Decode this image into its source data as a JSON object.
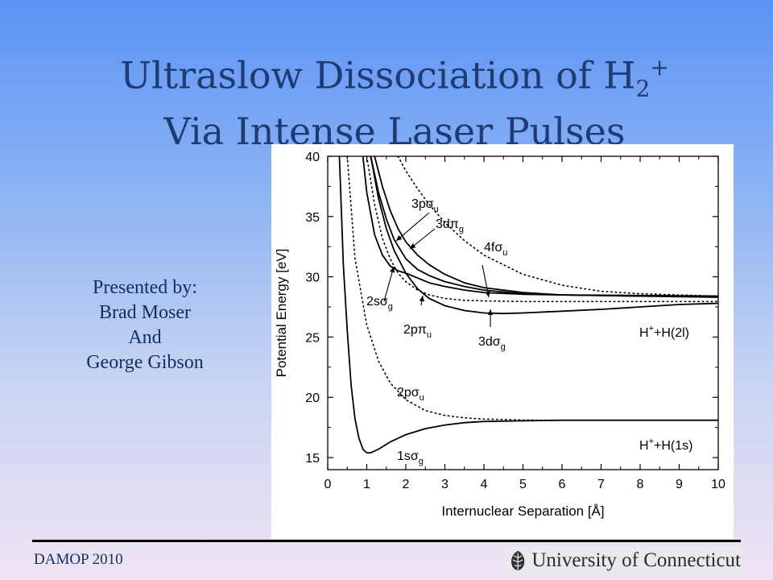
{
  "slide": {
    "title_line1_main": "Ultraslow Dissociation of H",
    "title_subscript": "2",
    "title_superscript": "+",
    "title_line2": "Via Intense Laser Pulses",
    "presenter_lines": [
      "Presented by:",
      "Brad Moser",
      "And",
      "George Gibson"
    ],
    "footer_left": "DAMOP 2010",
    "footer_logo_text": "University of Connecticut",
    "colors": {
      "title": "#1f3b73",
      "text": "#0f2f5f",
      "background_top": "#5b93f5",
      "background_bottom": "#f0e3f3"
    }
  },
  "chart_data": {
    "type": "line",
    "xlabel": "Internuclear Separation [Å]",
    "ylabel": "Potential Energy [eV]",
    "xlim": [
      0,
      10
    ],
    "ylim": [
      14,
      40
    ],
    "xticks": [
      0,
      1,
      2,
      3,
      4,
      5,
      6,
      7,
      8,
      9,
      10
    ],
    "yticks": [
      15,
      20,
      25,
      30,
      35,
      40
    ],
    "grid": false,
    "series": [
      {
        "name": "1sσg",
        "style": "solid",
        "x": [
          0.3,
          0.4,
          0.5,
          0.6,
          0.7,
          0.8,
          0.9,
          1.0,
          1.1,
          1.3,
          1.6,
          2.0,
          2.5,
          3.0,
          3.5,
          4.0,
          5.0,
          6.0,
          8.0,
          10.0
        ],
        "y": [
          40,
          31,
          25.5,
          21,
          18.2,
          16.6,
          15.7,
          15.4,
          15.4,
          15.7,
          16.3,
          16.9,
          17.4,
          17.7,
          17.9,
          18.0,
          18.05,
          18.1,
          18.1,
          18.1
        ]
      },
      {
        "name": "2pσu",
        "style": "dotted",
        "x": [
          0.5,
          0.7,
          1.0,
          1.3,
          1.6,
          2.0,
          2.5,
          3.0,
          3.5,
          4.0,
          5.0,
          6.0,
          8.0,
          10.0
        ],
        "y": [
          40,
          31.5,
          26,
          23,
          21.2,
          19.8,
          18.9,
          18.5,
          18.3,
          18.2,
          18.12,
          18.1,
          18.1,
          18.1
        ]
      },
      {
        "name": "2sσg",
        "style": "solid",
        "x": [
          0.9,
          1.0,
          1.2,
          1.4,
          1.6,
          1.8,
          2.0,
          2.3,
          2.6,
          3.0,
          3.5,
          4.0,
          5.0,
          6.0,
          8.0,
          10.0
        ],
        "y": [
          40,
          37,
          33.5,
          31.8,
          30.9,
          30.5,
          30.3,
          29.9,
          29.5,
          29.2,
          28.9,
          28.7,
          28.55,
          28.5,
          28.45,
          28.4
        ]
      },
      {
        "name": "2pπu",
        "style": "dotted",
        "x": [
          1.0,
          1.2,
          1.4,
          1.6,
          1.8,
          2.0,
          2.3,
          2.6,
          3.0,
          3.5,
          4.0,
          5.0,
          6.0,
          8.0,
          10.0
        ],
        "y": [
          40,
          36,
          33.2,
          31.5,
          30.3,
          29.6,
          28.9,
          28.5,
          28.2,
          28.05,
          28.0,
          27.95,
          27.95,
          27.95,
          27.95
        ]
      },
      {
        "name": "3pσu",
        "style": "solid",
        "x": [
          1.1,
          1.3,
          1.5,
          1.7,
          2.0,
          2.3,
          2.6,
          3.0,
          3.5,
          4.0,
          4.5,
          5.0,
          6.0,
          7.0,
          8.0,
          9.0,
          10.0
        ],
        "y": [
          40,
          36.5,
          34,
          32.2,
          30.3,
          29.0,
          28.2,
          27.6,
          27.2,
          27.0,
          26.95,
          27.0,
          27.15,
          27.3,
          27.5,
          27.7,
          27.8
        ]
      },
      {
        "name": "3dσg",
        "style": "solid",
        "x": [
          1.1,
          1.3,
          1.5,
          1.7,
          2.0,
          2.3,
          2.6,
          3.0,
          3.5,
          4.0,
          5.0,
          6.0,
          8.0,
          10.0
        ],
        "y": [
          40,
          37,
          34.8,
          33.1,
          31.5,
          30.6,
          30.1,
          29.6,
          29.2,
          28.9,
          28.6,
          28.5,
          28.4,
          28.3
        ]
      },
      {
        "name": "3dπg",
        "style": "solid",
        "x": [
          1.2,
          1.4,
          1.6,
          1.8,
          2.0,
          2.3,
          2.6,
          3.0,
          3.5,
          4.0,
          5.0,
          6.0,
          8.0,
          10.0
        ],
        "y": [
          40,
          37.5,
          35.5,
          34,
          32.9,
          31.8,
          31.0,
          30.2,
          29.5,
          29.1,
          28.7,
          28.5,
          28.4,
          28.4
        ]
      },
      {
        "name": "4fσu",
        "style": "dotted",
        "x": [
          1.8,
          2.0,
          2.3,
          2.6,
          3.0,
          3.5,
          4.0,
          5.0,
          6.0,
          7.0,
          8.0,
          10.0
        ],
        "y": [
          40,
          38.8,
          37.3,
          36,
          34.5,
          33,
          31.8,
          30.2,
          29.3,
          28.8,
          28.6,
          28.4
        ]
      }
    ],
    "annotations": [
      {
        "text": "3pσu",
        "main": "3pσ",
        "sub": "u"
      },
      {
        "text": "3dπg",
        "main": "3dπ",
        "sub": "g"
      },
      {
        "text": "4fσu",
        "main": "4fσ",
        "sub": "u"
      },
      {
        "text": "2sσg",
        "main": "2sσ",
        "sub": "g"
      },
      {
        "text": "2pπu",
        "main": "2pπ",
        "sub": "u"
      },
      {
        "text": "3dσg",
        "main": "3dσ",
        "sub": "g"
      },
      {
        "text": "2pσu",
        "main": "2pσ",
        "sub": "u"
      },
      {
        "text": "1sσg",
        "main": "1sσ",
        "sub": "g"
      },
      {
        "text": "H++H(2l)",
        "prefix": "H",
        "sup": "+",
        "suffix": "+H(2l)"
      },
      {
        "text": "H++H(1s)",
        "prefix": "H",
        "sup": "+",
        "suffix": "+H(1s)"
      }
    ]
  }
}
